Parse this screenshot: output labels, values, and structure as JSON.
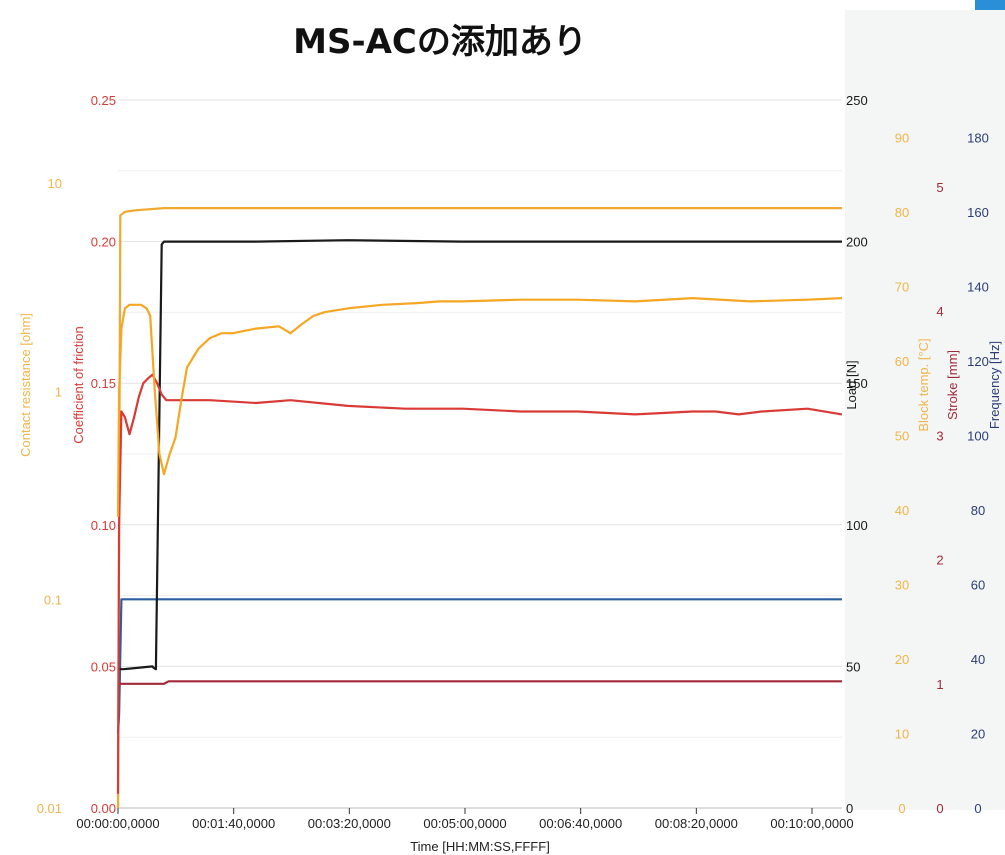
{
  "chart_data": {
    "type": "line",
    "title": "MS-ACの添加あり",
    "xlabel": "Time [HH:MM:SS,FFFF]",
    "x_ticks": [
      "00:00:00,0000",
      "00:01:40,0000",
      "00:03:20,0000",
      "00:05:00,0000",
      "00:06:40,0000",
      "00:08:20,0000",
      "00:10:00,0000"
    ],
    "xlim": [
      0,
      630
    ],
    "grid": true,
    "axes": [
      {
        "id": "contact",
        "label": "Contact resistance [ohm]",
        "side": "left",
        "scale": "log",
        "range": [
          0.01,
          25
        ],
        "ticks": [
          {
            "v": 0.01,
            "t": "0.01"
          },
          {
            "v": 0.1,
            "t": "0.1"
          },
          {
            "v": 1,
            "t": "1"
          },
          {
            "v": 10,
            "t": "10"
          }
        ],
        "color": "#f0b54a"
      },
      {
        "id": "cof",
        "label": "Coefficient of friction",
        "side": "left",
        "range": [
          0,
          0.25
        ],
        "ticks": [
          {
            "v": 0,
            "t": "0.00"
          },
          {
            "v": 0.05,
            "t": "0.05"
          },
          {
            "v": 0.1,
            "t": "0.10"
          },
          {
            "v": 0.15,
            "t": "0.15"
          },
          {
            "v": 0.2,
            "t": "0.20"
          },
          {
            "v": 0.25,
            "t": "0.25"
          }
        ],
        "color": "#d93a36"
      },
      {
        "id": "load",
        "label": "Load [N]",
        "side": "right",
        "range": [
          0,
          250
        ],
        "ticks": [
          {
            "v": 0,
            "t": "0"
          },
          {
            "v": 50,
            "t": "50"
          },
          {
            "v": 100,
            "t": "100"
          },
          {
            "v": 150,
            "t": "150"
          },
          {
            "v": 200,
            "t": "200"
          },
          {
            "v": 250,
            "t": "250"
          }
        ],
        "color": "#1a1a1a"
      },
      {
        "id": "temp",
        "label": "Block temp. [°C]",
        "side": "right",
        "range": [
          0,
          95
        ],
        "ticks": [
          {
            "v": 0,
            "t": "0"
          },
          {
            "v": 10,
            "t": "10"
          },
          {
            "v": 20,
            "t": "20"
          },
          {
            "v": 30,
            "t": "30"
          },
          {
            "v": 40,
            "t": "40"
          },
          {
            "v": 50,
            "t": "50"
          },
          {
            "v": 60,
            "t": "60"
          },
          {
            "v": 70,
            "t": "70"
          },
          {
            "v": 80,
            "t": "80"
          },
          {
            "v": 90,
            "t": "90"
          }
        ],
        "color": "#f0b54a"
      },
      {
        "id": "stroke",
        "label": "Stroke [mm]",
        "side": "right",
        "range": [
          0,
          5.7
        ],
        "ticks": [
          {
            "v": 0,
            "t": "0"
          },
          {
            "v": 1,
            "t": "1"
          },
          {
            "v": 2,
            "t": "2"
          },
          {
            "v": 3,
            "t": "3"
          },
          {
            "v": 4,
            "t": "4"
          },
          {
            "v": 5,
            "t": "5"
          }
        ],
        "color": "#a12a3a"
      },
      {
        "id": "freq",
        "label": "Frequency [Hz]",
        "side": "right",
        "range": [
          0,
          190
        ],
        "ticks": [
          {
            "v": 0,
            "t": "0"
          },
          {
            "v": 20,
            "t": "20"
          },
          {
            "v": 40,
            "t": "40"
          },
          {
            "v": 60,
            "t": "60"
          },
          {
            "v": 80,
            "t": "80"
          },
          {
            "v": 100,
            "t": "100"
          },
          {
            "v": 120,
            "t": "120"
          },
          {
            "v": 140,
            "t": "140"
          },
          {
            "v": 160,
            "t": "160"
          },
          {
            "v": 180,
            "t": "180"
          }
        ],
        "color": "#2b3d7a"
      }
    ],
    "series": [
      {
        "axis": "temp",
        "color": "#f0a830",
        "x": [
          0,
          2,
          6,
          15,
          40,
          100,
          200,
          400,
          630
        ],
        "y": [
          0,
          79.5,
          80,
          80.2,
          80.5,
          80.5,
          80.5,
          80.5,
          80.5
        ]
      },
      {
        "axis": "freq",
        "color": "#2b5fa0",
        "x": [
          0,
          1,
          3,
          630
        ],
        "y": [
          20,
          25,
          56,
          56
        ]
      },
      {
        "axis": "stroke",
        "color": "#a12a3a",
        "x": [
          0,
          40,
          44,
          630
        ],
        "y": [
          1.0,
          1.0,
          1.02,
          1.02
        ]
      },
      {
        "axis": "load",
        "color": "#1a1a1a",
        "x": [
          0,
          5,
          30,
          31,
          33,
          38,
          40,
          60,
          120,
          200,
          300,
          400,
          500,
          630
        ],
        "y": [
          49,
          49,
          50,
          49.5,
          49,
          199,
          200,
          200,
          200,
          200.5,
          200,
          200,
          200,
          200
        ]
      },
      {
        "axis": "cof",
        "color": "#d93a36",
        "x": [
          0,
          1,
          3,
          6,
          10,
          14,
          18,
          22,
          27,
          30,
          34,
          38,
          42,
          50,
          80,
          120,
          150,
          200,
          250,
          300,
          350,
          400,
          450,
          500,
          520,
          540,
          560,
          600,
          630
        ],
        "y": [
          0.005,
          0.1,
          0.14,
          0.138,
          0.132,
          0.138,
          0.145,
          0.15,
          0.152,
          0.153,
          0.15,
          0.146,
          0.144,
          0.144,
          0.144,
          0.143,
          0.144,
          0.142,
          0.141,
          0.141,
          0.14,
          0.14,
          0.139,
          0.14,
          0.14,
          0.139,
          0.14,
          0.141,
          0.139
        ]
      },
      {
        "axis": "contact",
        "color": "#f5a623",
        "x": [
          0,
          1,
          3,
          6,
          10,
          20,
          25,
          28,
          32,
          36,
          40,
          45,
          50,
          55,
          60,
          70,
          80,
          90,
          100,
          120,
          140,
          150,
          160,
          170,
          180,
          200,
          230,
          260,
          280,
          300,
          350,
          400,
          450,
          500,
          550,
          600,
          630
        ],
        "y": [
          0.25,
          1.0,
          2.0,
          2.5,
          2.6,
          2.6,
          2.5,
          2.3,
          1.0,
          0.5,
          0.4,
          0.5,
          0.6,
          0.9,
          1.3,
          1.6,
          1.8,
          1.9,
          1.9,
          2.0,
          2.05,
          1.9,
          2.1,
          2.3,
          2.4,
          2.5,
          2.6,
          2.65,
          2.7,
          2.7,
          2.75,
          2.75,
          2.7,
          2.8,
          2.7,
          2.75,
          2.8
        ]
      }
    ]
  }
}
